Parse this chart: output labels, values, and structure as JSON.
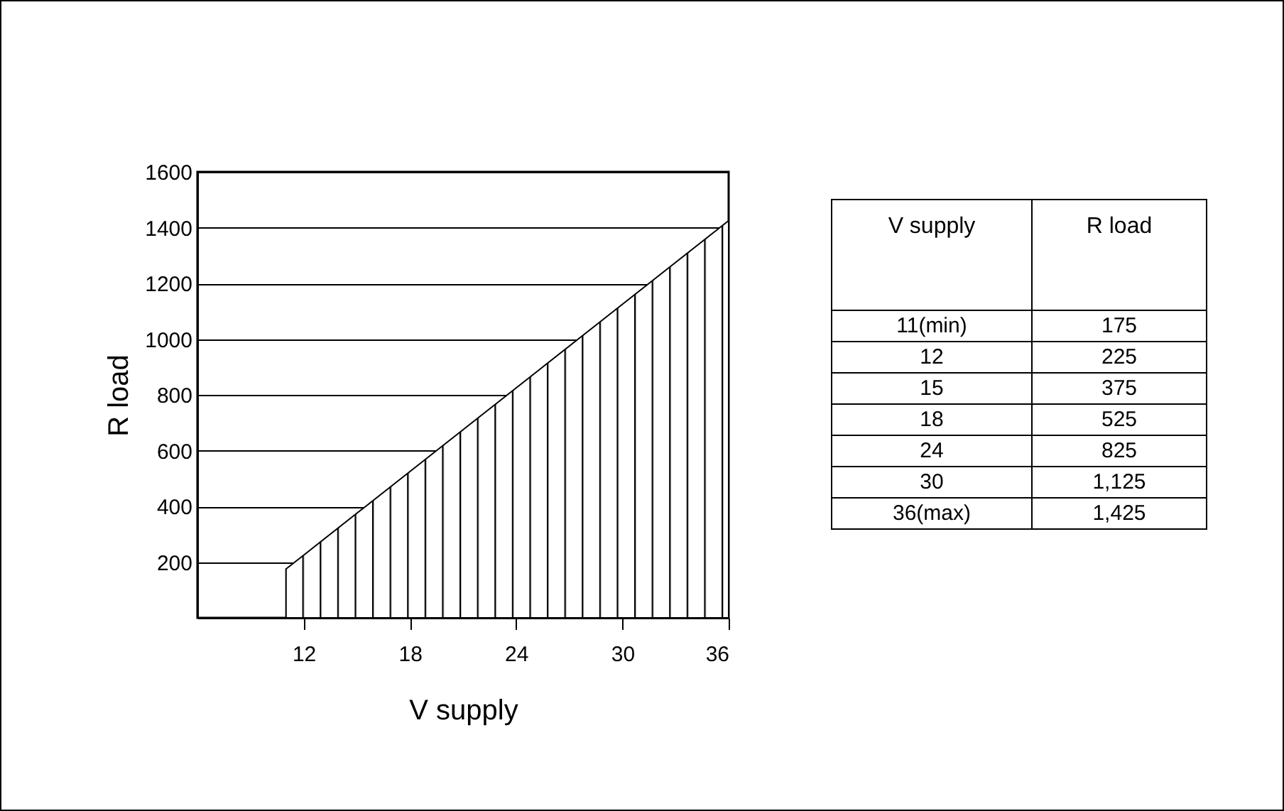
{
  "chart_data": {
    "type": "area",
    "xlabel": "V supply",
    "ylabel": "R load",
    "x": [
      11,
      12,
      15,
      18,
      24,
      30,
      36
    ],
    "series": [
      {
        "color": "#000000",
        "values": [
          175,
          225,
          375,
          525,
          825,
          1125,
          1425
        ]
      }
    ],
    "value_labels": [
      "175",
      "225",
      "375",
      "525",
      "825",
      "1,125",
      "1,425"
    ],
    "annotations": [
      "11(min)",
      "12",
      "15",
      "18",
      "24",
      "30",
      "36(max)"
    ],
    "xlim": [
      6,
      36
    ],
    "xticks": [
      12,
      18,
      24,
      30,
      36
    ],
    "ylim": [
      0,
      1600
    ],
    "yticks": [
      200,
      400,
      600,
      800,
      1000,
      1200,
      1400,
      1600
    ],
    "grid": "y"
  }
}
